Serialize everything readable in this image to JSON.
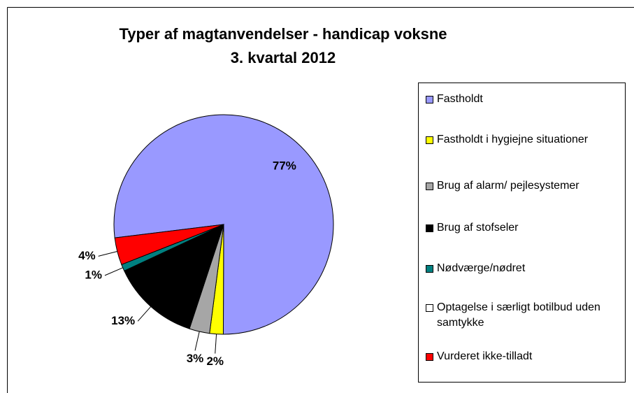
{
  "chart_data": {
    "type": "pie",
    "title": "Typer af magtanvendelser - handicap voksne",
    "subtitle": "3. kvartal 2012",
    "categories": [
      "Fastholdt",
      "Fastholdt i hygiejne situationer",
      "Brug af alarm/ pejlesystemer",
      "Brug af stofseler",
      "Nødværge/nødret",
      "Optagelse i særligt botilbud uden samtykke",
      "Vurderet ikke-tilladt"
    ],
    "values": [
      77,
      2,
      3,
      13,
      1,
      0,
      4
    ],
    "value_labels": [
      "77%",
      "2%",
      "3%",
      "13%",
      "1%",
      null,
      "4%"
    ],
    "colors": [
      "#9999ff",
      "#ffff00",
      "#a6a6a6",
      "#000000",
      "#008080",
      "#ffffff",
      "#ff0000"
    ],
    "legend": "right"
  }
}
